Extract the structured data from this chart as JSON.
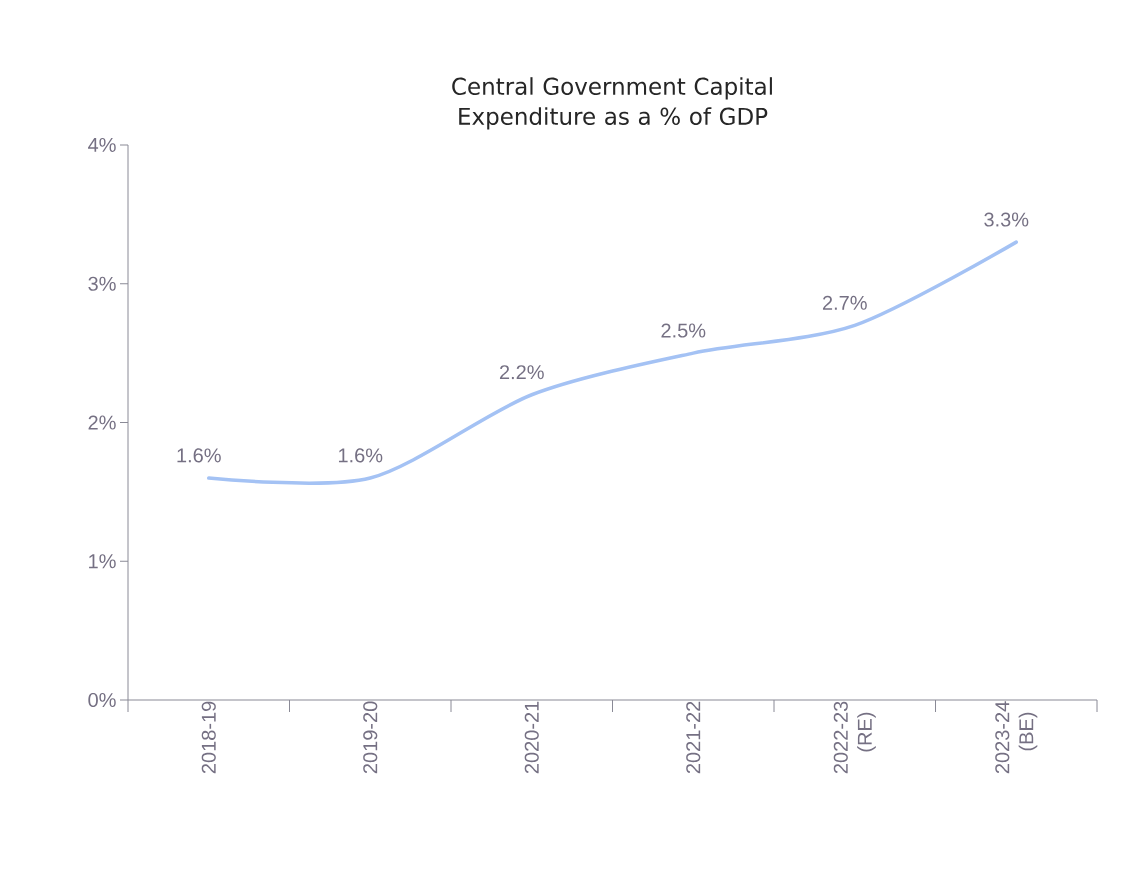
{
  "chart_data": {
    "type": "line",
    "title": "Central Government Capital Expenditure as a % of GDP",
    "categories": [
      "2018-19",
      "2019-20",
      "2020-21",
      "2021-22",
      "2022-23 (RE)",
      "2023-24 (BE)"
    ],
    "series": [
      {
        "color": "#a4c2f4",
        "values": [
          1.6,
          1.6,
          2.2,
          2.5,
          2.7,
          3.3
        ],
        "value_labels": [
          "1.6%",
          "1.6%",
          "2.2%",
          "2.5%",
          "2.7%",
          "3.3%"
        ]
      }
    ],
    "ylim": [
      0,
      4
    ],
    "yticks": [
      {
        "value": 0,
        "label": "0%"
      },
      {
        "value": 1,
        "label": "1%"
      },
      {
        "value": 2,
        "label": "2%"
      },
      {
        "value": 3,
        "label": "3%"
      },
      {
        "value": 4,
        "label": "4%"
      }
    ],
    "grid": false
  }
}
